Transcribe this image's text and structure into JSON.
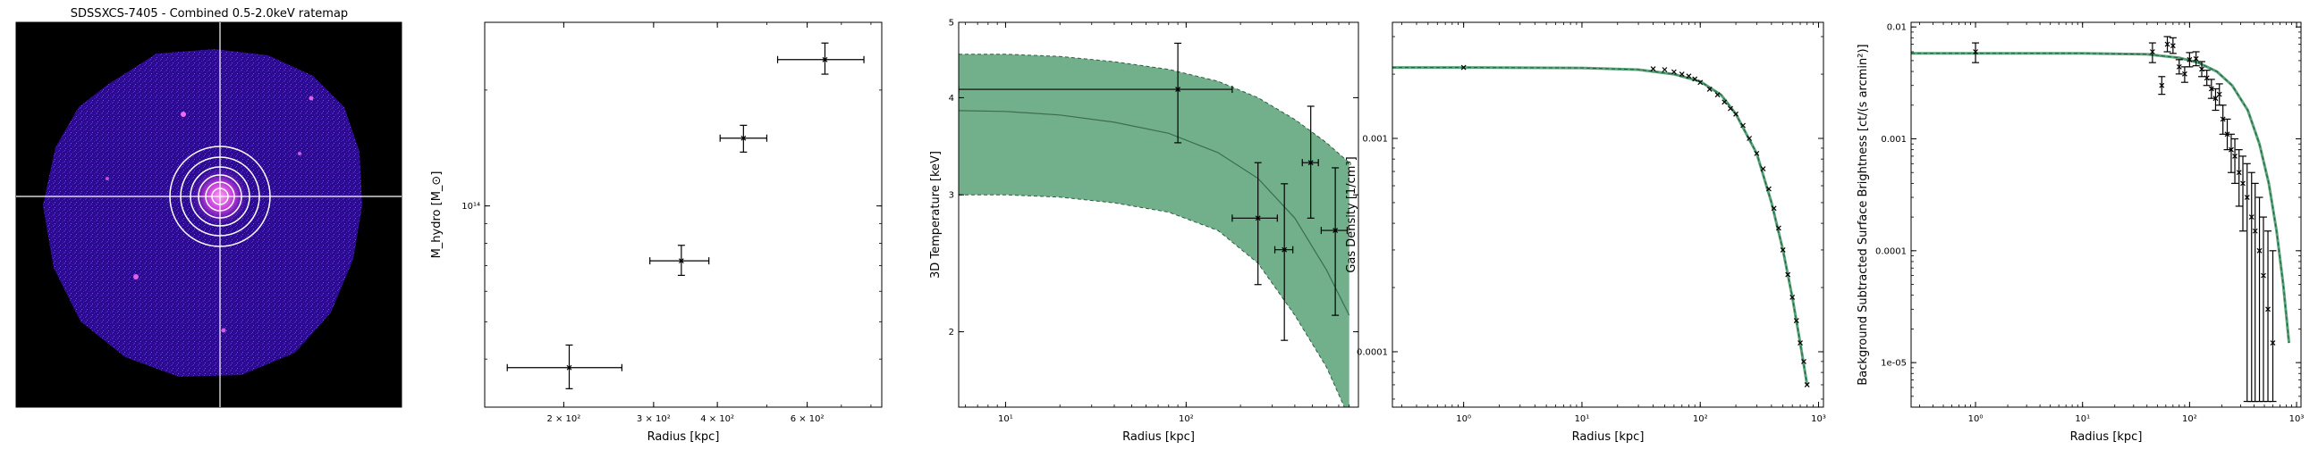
{
  "image_panel": {
    "title": "SDSSXCS-7405 - Combined 0.5-2.0keV ratemap",
    "colors": {
      "background": "#000000",
      "emission": "#2a0b8f",
      "bright": "#f06bf0",
      "crosshair": "#ffffff"
    }
  },
  "chart_data": [
    {
      "type": "scatter",
      "xlabel": "Radius [kpc]",
      "ylabel": "M_hydro [M_⊙]",
      "x_scale": "log",
      "y_scale": "log",
      "xlim": [
        140,
        840
      ],
      "ylim": [
        30000000000000.0,
        300000000000000.0
      ],
      "xticks": [
        {
          "value": 200,
          "label": "2 × 10²"
        },
        {
          "value": 300,
          "label": "3 × 10²"
        },
        {
          "value": 400,
          "label": "4 × 10²"
        },
        {
          "value": 600,
          "label": "6 × 10²"
        }
      ],
      "yticks": [
        {
          "value": 100000000000000.0,
          "label": "10¹⁴"
        }
      ],
      "series": [
        {
          "color": "#000000",
          "points": [
            {
              "x": 205,
              "xerr": [
                50,
                55
              ],
              "y": 38000000000000.0,
              "yerr": [
                4500000000000.0,
                5500000000000.0
              ]
            },
            {
              "x": 340,
              "xerr": [
                45,
                45
              ],
              "y": 72000000000000.0,
              "yerr": [
                6000000000000.0,
                7000000000000.0
              ]
            },
            {
              "x": 450,
              "xerr": [
                45,
                50
              ],
              "y": 150000000000000.0,
              "yerr": [
                12000000000000.0,
                12000000000000.0
              ]
            },
            {
              "x": 650,
              "xerr": [
                125,
                125
              ],
              "y": 240000000000000.0,
              "yerr": [
                20000000000000.0,
                25000000000000.0
              ]
            }
          ]
        }
      ]
    },
    {
      "type": "line",
      "xlabel": "Radius [kpc]",
      "ylabel": "3D Temperature [keV]",
      "x_scale": "log",
      "y_scale": "log",
      "xlim": [
        5.5,
        900
      ],
      "ylim": [
        1.6,
        5.0
      ],
      "xticks": [
        {
          "value": 10,
          "label": "10¹"
        },
        {
          "value": 100,
          "label": "10²"
        }
      ],
      "yticks": [
        {
          "value": 2,
          "label": "2"
        },
        {
          "value": 3,
          "label": "3"
        },
        {
          "value": 4,
          "label": "4"
        },
        {
          "value": 5,
          "label": "5"
        }
      ],
      "model_band": {
        "color": "#6aab85",
        "x": [
          5.5,
          10,
          20,
          40,
          80,
          150,
          250,
          400,
          600,
          800
        ],
        "upper": [
          4.55,
          4.55,
          4.52,
          4.45,
          4.35,
          4.2,
          4.0,
          3.75,
          3.5,
          3.3
        ],
        "median": [
          3.85,
          3.84,
          3.8,
          3.72,
          3.6,
          3.4,
          3.15,
          2.8,
          2.4,
          2.1
        ],
        "lower": [
          3.0,
          3.0,
          2.98,
          2.93,
          2.85,
          2.7,
          2.45,
          2.1,
          1.8,
          1.55
        ]
      },
      "series": [
        {
          "color": "#000000",
          "points": [
            {
              "x": 90,
              "xerr": [
                84.5,
                90
              ],
              "y": 4.1,
              "yerr": [
                0.6,
                0.6
              ]
            },
            {
              "x": 250,
              "xerr": [
                70,
                70
              ],
              "y": 2.8,
              "yerr": [
                0.5,
                0.5
              ]
            },
            {
              "x": 350,
              "xerr": [
                40,
                40
              ],
              "y": 2.55,
              "yerr": [
                0.6,
                0.55
              ]
            },
            {
              "x": 490,
              "xerr": [
                50,
                50
              ],
              "y": 3.3,
              "yerr": [
                0.5,
                0.6
              ]
            },
            {
              "x": 670,
              "xerr": [
                110,
                110
              ],
              "y": 2.7,
              "yerr": [
                0.6,
                0.55
              ]
            }
          ]
        }
      ]
    },
    {
      "type": "line",
      "xlabel": "Radius [kpc]",
      "ylabel": "Gas Density [1/cm³]",
      "x_scale": "log",
      "y_scale": "log",
      "xlim": [
        0.25,
        1100
      ],
      "ylim": [
        5.5e-05,
        0.0035
      ],
      "xticks": [
        {
          "value": 1,
          "label": "10⁰"
        },
        {
          "value": 10,
          "label": "10¹"
        },
        {
          "value": 100,
          "label": "10²"
        },
        {
          "value": 1000,
          "label": "10³"
        }
      ],
      "yticks": [
        {
          "value": 0.0001,
          "label": "0.0001"
        },
        {
          "value": 0.001,
          "label": "0.001"
        }
      ],
      "model": {
        "color": "#2e8b57",
        "x": [
          0.25,
          1,
          10,
          30,
          60,
          100,
          150,
          200,
          300,
          400,
          500,
          600,
          700,
          800
        ],
        "y": [
          0.00215,
          0.00215,
          0.00214,
          0.0021,
          0.002,
          0.00185,
          0.0016,
          0.0013,
          0.00085,
          0.0005,
          0.0003,
          0.00018,
          0.00011,
          7e-05
        ]
      },
      "series": [
        {
          "color": "#000000",
          "points": [
            {
              "x": 1,
              "y": 0.00215
            },
            {
              "x": 40,
              "y": 0.00212
            },
            {
              "x": 50,
              "y": 0.0021
            },
            {
              "x": 60,
              "y": 0.00205
            },
            {
              "x": 70,
              "y": 0.002
            },
            {
              "x": 80,
              "y": 0.00196
            },
            {
              "x": 90,
              "y": 0.0019
            },
            {
              "x": 100,
              "y": 0.00183
            },
            {
              "x": 120,
              "y": 0.0017
            },
            {
              "x": 140,
              "y": 0.0016
            },
            {
              "x": 160,
              "y": 0.00148
            },
            {
              "x": 180,
              "y": 0.00138
            },
            {
              "x": 200,
              "y": 0.0013
            },
            {
              "x": 230,
              "y": 0.00115
            },
            {
              "x": 260,
              "y": 0.001
            },
            {
              "x": 300,
              "y": 0.00085
            },
            {
              "x": 340,
              "y": 0.00072
            },
            {
              "x": 380,
              "y": 0.00058
            },
            {
              "x": 420,
              "y": 0.00047
            },
            {
              "x": 460,
              "y": 0.00038
            },
            {
              "x": 500,
              "y": 0.0003
            },
            {
              "x": 550,
              "y": 0.00023
            },
            {
              "x": 600,
              "y": 0.00018
            },
            {
              "x": 650,
              "y": 0.00014
            },
            {
              "x": 700,
              "y": 0.00011
            },
            {
              "x": 750,
              "y": 9e-05
            },
            {
              "x": 800,
              "y": 7e-05
            }
          ]
        }
      ]
    },
    {
      "type": "scatter",
      "xlabel": "Radius [kpc]",
      "ylabel": "Background Subtracted Surface Brightness [ct/(s arcmin²)]",
      "x_scale": "log",
      "y_scale": "log",
      "xlim": [
        0.25,
        1100
      ],
      "ylim": [
        4e-06,
        0.011
      ],
      "xticks": [
        {
          "value": 1,
          "label": "10⁰"
        },
        {
          "value": 10,
          "label": "10¹"
        },
        {
          "value": 100,
          "label": "10²"
        },
        {
          "value": 1000,
          "label": "10³"
        }
      ],
      "yticks": [
        {
          "value": 1e-05,
          "label": "1e-05"
        },
        {
          "value": 0.0001,
          "label": "0.0001"
        },
        {
          "value": 0.001,
          "label": "0.001"
        },
        {
          "value": 0.01,
          "label": "0.01"
        }
      ],
      "model": {
        "color": "#2e8b57",
        "x": [
          0.25,
          1,
          10,
          40,
          80,
          120,
          180,
          250,
          350,
          450,
          550,
          650,
          750,
          850
        ],
        "y": [
          0.0058,
          0.0058,
          0.0058,
          0.0057,
          0.0053,
          0.0048,
          0.004,
          0.003,
          0.0018,
          0.0009,
          0.0004,
          0.00015,
          5e-05,
          1.5e-05
        ]
      },
      "series": [
        {
          "color": "#000000",
          "points": [
            {
              "x": 1,
              "y": 0.006,
              "ylo": 0.0048,
              "yhi": 0.0072
            },
            {
              "x": 45,
              "y": 0.006,
              "ylo": 0.0048,
              "yhi": 0.0072
            },
            {
              "x": 55,
              "y": 0.003,
              "ylo": 0.0025,
              "yhi": 0.0036
            },
            {
              "x": 62,
              "y": 0.007,
              "ylo": 0.006,
              "yhi": 0.0082
            },
            {
              "x": 70,
              "y": 0.0068,
              "ylo": 0.0058,
              "yhi": 0.008
            },
            {
              "x": 80,
              "y": 0.0044,
              "ylo": 0.0038,
              "yhi": 0.0051
            },
            {
              "x": 90,
              "y": 0.0038,
              "ylo": 0.0032,
              "yhi": 0.0044
            },
            {
              "x": 100,
              "y": 0.0051,
              "ylo": 0.0044,
              "yhi": 0.0059
            },
            {
              "x": 115,
              "y": 0.0052,
              "ylo": 0.0045,
              "yhi": 0.006
            },
            {
              "x": 130,
              "y": 0.0042,
              "ylo": 0.0036,
              "yhi": 0.0049
            },
            {
              "x": 145,
              "y": 0.0035,
              "ylo": 0.003,
              "yhi": 0.0041
            },
            {
              "x": 160,
              "y": 0.0028,
              "ylo": 0.0023,
              "yhi": 0.0034
            },
            {
              "x": 175,
              "y": 0.0023,
              "ylo": 0.0018,
              "yhi": 0.0028
            },
            {
              "x": 190,
              "y": 0.0025,
              "ylo": 0.002,
              "yhi": 0.0031
            },
            {
              "x": 205,
              "y": 0.0015,
              "ylo": 0.0011,
              "yhi": 0.002
            },
            {
              "x": 225,
              "y": 0.0011,
              "ylo": 0.0008,
              "yhi": 0.0015
            },
            {
              "x": 245,
              "y": 0.0008,
              "ylo": 0.0005,
              "yhi": 0.0011
            },
            {
              "x": 265,
              "y": 0.0007,
              "ylo": 0.0004,
              "yhi": 0.001
            },
            {
              "x": 290,
              "y": 0.0005,
              "ylo": 0.00025,
              "yhi": 0.0008
            },
            {
              "x": 315,
              "y": 0.0004,
              "ylo": 0.00015,
              "yhi": 0.0007
            },
            {
              "x": 345,
              "y": 0.0003,
              "ylo": 4.5e-06,
              "yhi": 0.0006
            },
            {
              "x": 380,
              "y": 0.0002,
              "ylo": 4.5e-06,
              "yhi": 0.0005
            },
            {
              "x": 410,
              "y": 0.00015,
              "ylo": 4.5e-06,
              "yhi": 0.0004
            },
            {
              "x": 450,
              "y": 0.0001,
              "ylo": 4.5e-06,
              "yhi": 0.0003
            },
            {
              "x": 490,
              "y": 6e-05,
              "ylo": 4.5e-06,
              "yhi": 0.0002
            },
            {
              "x": 540,
              "y": 3e-05,
              "ylo": 4.5e-06,
              "yhi": 0.00015
            },
            {
              "x": 600,
              "y": 1.5e-05,
              "ylo": 4.5e-06,
              "yhi": 0.0001
            }
          ]
        }
      ]
    }
  ]
}
